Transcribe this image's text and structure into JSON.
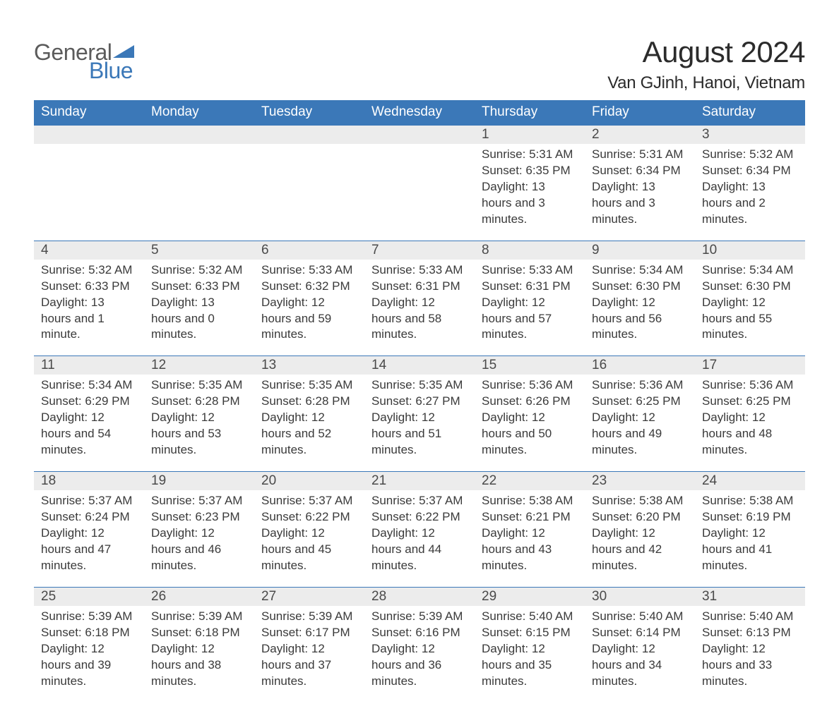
{
  "brand": {
    "general": "General",
    "blue": "Blue",
    "shape_color": "#3b78b8",
    "text_gray": "#5b5b5b"
  },
  "header": {
    "title": "August 2024",
    "location": "Van GJinh, Hanoi, Vietnam"
  },
  "colors": {
    "header_bg": "#3b78b8",
    "header_text": "#ffffff",
    "daybar_bg": "#ececec",
    "daybar_border": "#3b78b8",
    "body_text": "#3a3a3a",
    "title_text": "#2b2b2b",
    "page_bg": "#ffffff"
  },
  "weekdays": [
    "Sunday",
    "Monday",
    "Tuesday",
    "Wednesday",
    "Thursday",
    "Friday",
    "Saturday"
  ],
  "calendar": {
    "type": "table",
    "rows": [
      [
        {
          "day": "",
          "sunrise": "",
          "sunset": "",
          "daylight": ""
        },
        {
          "day": "",
          "sunrise": "",
          "sunset": "",
          "daylight": ""
        },
        {
          "day": "",
          "sunrise": "",
          "sunset": "",
          "daylight": ""
        },
        {
          "day": "",
          "sunrise": "",
          "sunset": "",
          "daylight": ""
        },
        {
          "day": "1",
          "sunrise": "Sunrise: 5:31 AM",
          "sunset": "Sunset: 6:35 PM",
          "daylight": "Daylight: 13 hours and 3 minutes."
        },
        {
          "day": "2",
          "sunrise": "Sunrise: 5:31 AM",
          "sunset": "Sunset: 6:34 PM",
          "daylight": "Daylight: 13 hours and 3 minutes."
        },
        {
          "day": "3",
          "sunrise": "Sunrise: 5:32 AM",
          "sunset": "Sunset: 6:34 PM",
          "daylight": "Daylight: 13 hours and 2 minutes."
        }
      ],
      [
        {
          "day": "4",
          "sunrise": "Sunrise: 5:32 AM",
          "sunset": "Sunset: 6:33 PM",
          "daylight": "Daylight: 13 hours and 1 minute."
        },
        {
          "day": "5",
          "sunrise": "Sunrise: 5:32 AM",
          "sunset": "Sunset: 6:33 PM",
          "daylight": "Daylight: 13 hours and 0 minutes."
        },
        {
          "day": "6",
          "sunrise": "Sunrise: 5:33 AM",
          "sunset": "Sunset: 6:32 PM",
          "daylight": "Daylight: 12 hours and 59 minutes."
        },
        {
          "day": "7",
          "sunrise": "Sunrise: 5:33 AM",
          "sunset": "Sunset: 6:31 PM",
          "daylight": "Daylight: 12 hours and 58 minutes."
        },
        {
          "day": "8",
          "sunrise": "Sunrise: 5:33 AM",
          "sunset": "Sunset: 6:31 PM",
          "daylight": "Daylight: 12 hours and 57 minutes."
        },
        {
          "day": "9",
          "sunrise": "Sunrise: 5:34 AM",
          "sunset": "Sunset: 6:30 PM",
          "daylight": "Daylight: 12 hours and 56 minutes."
        },
        {
          "day": "10",
          "sunrise": "Sunrise: 5:34 AM",
          "sunset": "Sunset: 6:30 PM",
          "daylight": "Daylight: 12 hours and 55 minutes."
        }
      ],
      [
        {
          "day": "11",
          "sunrise": "Sunrise: 5:34 AM",
          "sunset": "Sunset: 6:29 PM",
          "daylight": "Daylight: 12 hours and 54 minutes."
        },
        {
          "day": "12",
          "sunrise": "Sunrise: 5:35 AM",
          "sunset": "Sunset: 6:28 PM",
          "daylight": "Daylight: 12 hours and 53 minutes."
        },
        {
          "day": "13",
          "sunrise": "Sunrise: 5:35 AM",
          "sunset": "Sunset: 6:28 PM",
          "daylight": "Daylight: 12 hours and 52 minutes."
        },
        {
          "day": "14",
          "sunrise": "Sunrise: 5:35 AM",
          "sunset": "Sunset: 6:27 PM",
          "daylight": "Daylight: 12 hours and 51 minutes."
        },
        {
          "day": "15",
          "sunrise": "Sunrise: 5:36 AM",
          "sunset": "Sunset: 6:26 PM",
          "daylight": "Daylight: 12 hours and 50 minutes."
        },
        {
          "day": "16",
          "sunrise": "Sunrise: 5:36 AM",
          "sunset": "Sunset: 6:25 PM",
          "daylight": "Daylight: 12 hours and 49 minutes."
        },
        {
          "day": "17",
          "sunrise": "Sunrise: 5:36 AM",
          "sunset": "Sunset: 6:25 PM",
          "daylight": "Daylight: 12 hours and 48 minutes."
        }
      ],
      [
        {
          "day": "18",
          "sunrise": "Sunrise: 5:37 AM",
          "sunset": "Sunset: 6:24 PM",
          "daylight": "Daylight: 12 hours and 47 minutes."
        },
        {
          "day": "19",
          "sunrise": "Sunrise: 5:37 AM",
          "sunset": "Sunset: 6:23 PM",
          "daylight": "Daylight: 12 hours and 46 minutes."
        },
        {
          "day": "20",
          "sunrise": "Sunrise: 5:37 AM",
          "sunset": "Sunset: 6:22 PM",
          "daylight": "Daylight: 12 hours and 45 minutes."
        },
        {
          "day": "21",
          "sunrise": "Sunrise: 5:37 AM",
          "sunset": "Sunset: 6:22 PM",
          "daylight": "Daylight: 12 hours and 44 minutes."
        },
        {
          "day": "22",
          "sunrise": "Sunrise: 5:38 AM",
          "sunset": "Sunset: 6:21 PM",
          "daylight": "Daylight: 12 hours and 43 minutes."
        },
        {
          "day": "23",
          "sunrise": "Sunrise: 5:38 AM",
          "sunset": "Sunset: 6:20 PM",
          "daylight": "Daylight: 12 hours and 42 minutes."
        },
        {
          "day": "24",
          "sunrise": "Sunrise: 5:38 AM",
          "sunset": "Sunset: 6:19 PM",
          "daylight": "Daylight: 12 hours and 41 minutes."
        }
      ],
      [
        {
          "day": "25",
          "sunrise": "Sunrise: 5:39 AM",
          "sunset": "Sunset: 6:18 PM",
          "daylight": "Daylight: 12 hours and 39 minutes."
        },
        {
          "day": "26",
          "sunrise": "Sunrise: 5:39 AM",
          "sunset": "Sunset: 6:18 PM",
          "daylight": "Daylight: 12 hours and 38 minutes."
        },
        {
          "day": "27",
          "sunrise": "Sunrise: 5:39 AM",
          "sunset": "Sunset: 6:17 PM",
          "daylight": "Daylight: 12 hours and 37 minutes."
        },
        {
          "day": "28",
          "sunrise": "Sunrise: 5:39 AM",
          "sunset": "Sunset: 6:16 PM",
          "daylight": "Daylight: 12 hours and 36 minutes."
        },
        {
          "day": "29",
          "sunrise": "Sunrise: 5:40 AM",
          "sunset": "Sunset: 6:15 PM",
          "daylight": "Daylight: 12 hours and 35 minutes."
        },
        {
          "day": "30",
          "sunrise": "Sunrise: 5:40 AM",
          "sunset": "Sunset: 6:14 PM",
          "daylight": "Daylight: 12 hours and 34 minutes."
        },
        {
          "day": "31",
          "sunrise": "Sunrise: 5:40 AM",
          "sunset": "Sunset: 6:13 PM",
          "daylight": "Daylight: 12 hours and 33 minutes."
        }
      ]
    ]
  }
}
